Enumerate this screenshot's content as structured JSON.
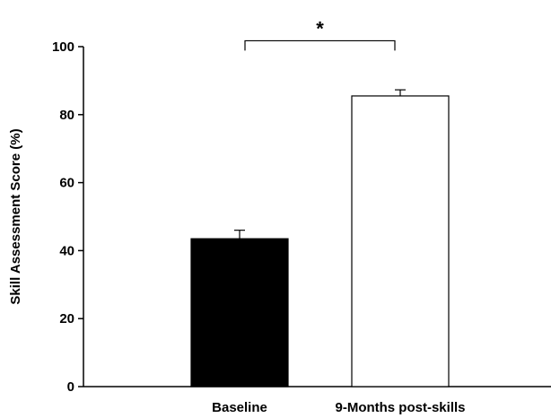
{
  "chart_data": {
    "type": "bar",
    "title": "",
    "xlabel": "",
    "ylabel": "Skill Assessment Score (%)",
    "ylim": [
      0,
      100
    ],
    "yticks": [
      0,
      20,
      40,
      60,
      80,
      100
    ],
    "grid": false,
    "categories": [
      "Baseline",
      "9-Months post-skills"
    ],
    "values": [
      43.5,
      85.5
    ],
    "errors": [
      2.5,
      1.8
    ],
    "bar_colors": [
      "#000000",
      "#ffffff"
    ],
    "annotation": {
      "text": "*",
      "between": [
        0,
        1
      ],
      "y": 102
    }
  }
}
